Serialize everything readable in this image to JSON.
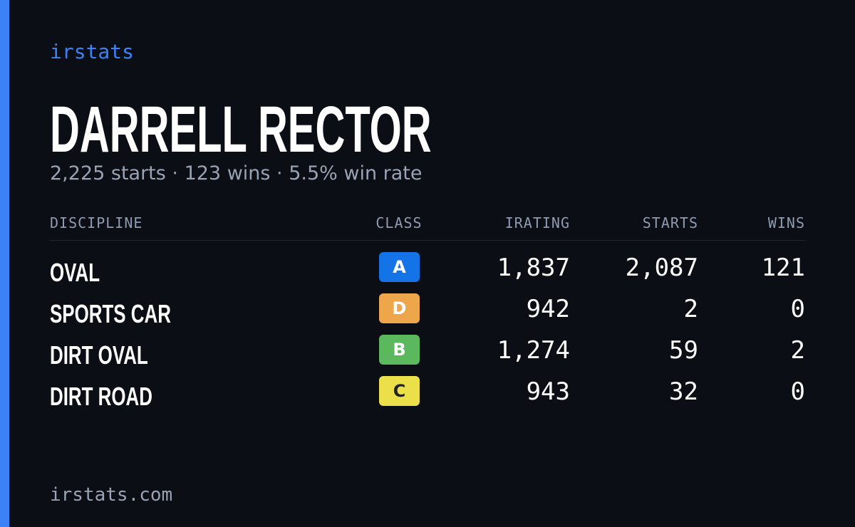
{
  "brand": "irstats",
  "player": {
    "name": "DARRELL RECTOR",
    "summary": "2,225 starts · 123 wins · 5.5% win rate"
  },
  "table": {
    "headers": [
      "DISCIPLINE",
      "CLASS",
      "IRATING",
      "STARTS",
      "WINS"
    ],
    "rows": [
      {
        "discipline": "OVAL",
        "class": "A",
        "class_color": "#1473e6",
        "irating": "1,837",
        "starts": "2,087",
        "wins": "121"
      },
      {
        "discipline": "SPORTS CAR",
        "class": "D",
        "class_color": "#eda64a",
        "irating": "942",
        "starts": "2",
        "wins": "0"
      },
      {
        "discipline": "DIRT OVAL",
        "class": "B",
        "class_color": "#5cb85c",
        "irating": "1,274",
        "starts": "59",
        "wins": "2"
      },
      {
        "discipline": "DIRT ROAD",
        "class": "C",
        "class_color": "#ebe04a",
        "irating": "943",
        "starts": "32",
        "wins": "0"
      }
    ]
  },
  "footer": "irstats.com"
}
